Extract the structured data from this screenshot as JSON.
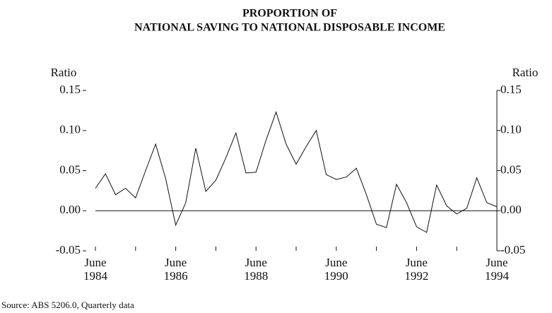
{
  "chart_data": {
    "type": "line",
    "title": [
      "PROPORTION OF",
      "NATIONAL SAVING TO NATIONAL DISPOSABLE INCOME"
    ],
    "y_label": "Ratio",
    "y2_label": "Ratio",
    "source": "Source: ABS 5206.0, Quarterly data",
    "categories": [
      "June 1984",
      null,
      null,
      null,
      null,
      null,
      null,
      null,
      "June 1986",
      null,
      null,
      null,
      null,
      null,
      null,
      null,
      "June 1988",
      null,
      null,
      null,
      null,
      null,
      null,
      null,
      "June 1990",
      null,
      null,
      null,
      null,
      null,
      null,
      null,
      "June 1992",
      null,
      null,
      null,
      null,
      null,
      null,
      null,
      "June 1994"
    ],
    "values": [
      0.028,
      0.046,
      0.02,
      0.028,
      0.016,
      0.05,
      0.083,
      0.04,
      -0.018,
      0.01,
      0.078,
      0.024,
      0.038,
      0.066,
      0.097,
      0.047,
      0.048,
      0.088,
      0.123,
      0.083,
      0.058,
      0.08,
      0.1,
      0.045,
      0.039,
      0.042,
      0.053,
      0.02,
      -0.017,
      -0.021,
      0.033,
      0.01,
      -0.02,
      -0.027,
      0.032,
      0.006,
      -0.004,
      0.003,
      0.041,
      0.01,
      0.005
    ],
    "color": "#111111",
    "ylim": [
      -0.05,
      0.15
    ],
    "yticks": [
      -0.05,
      {
        "value": 0,
        "label": "0.00"
      },
      0.05,
      {
        "value": 0.1,
        "label": "0.10"
      },
      0.15
    ]
  }
}
